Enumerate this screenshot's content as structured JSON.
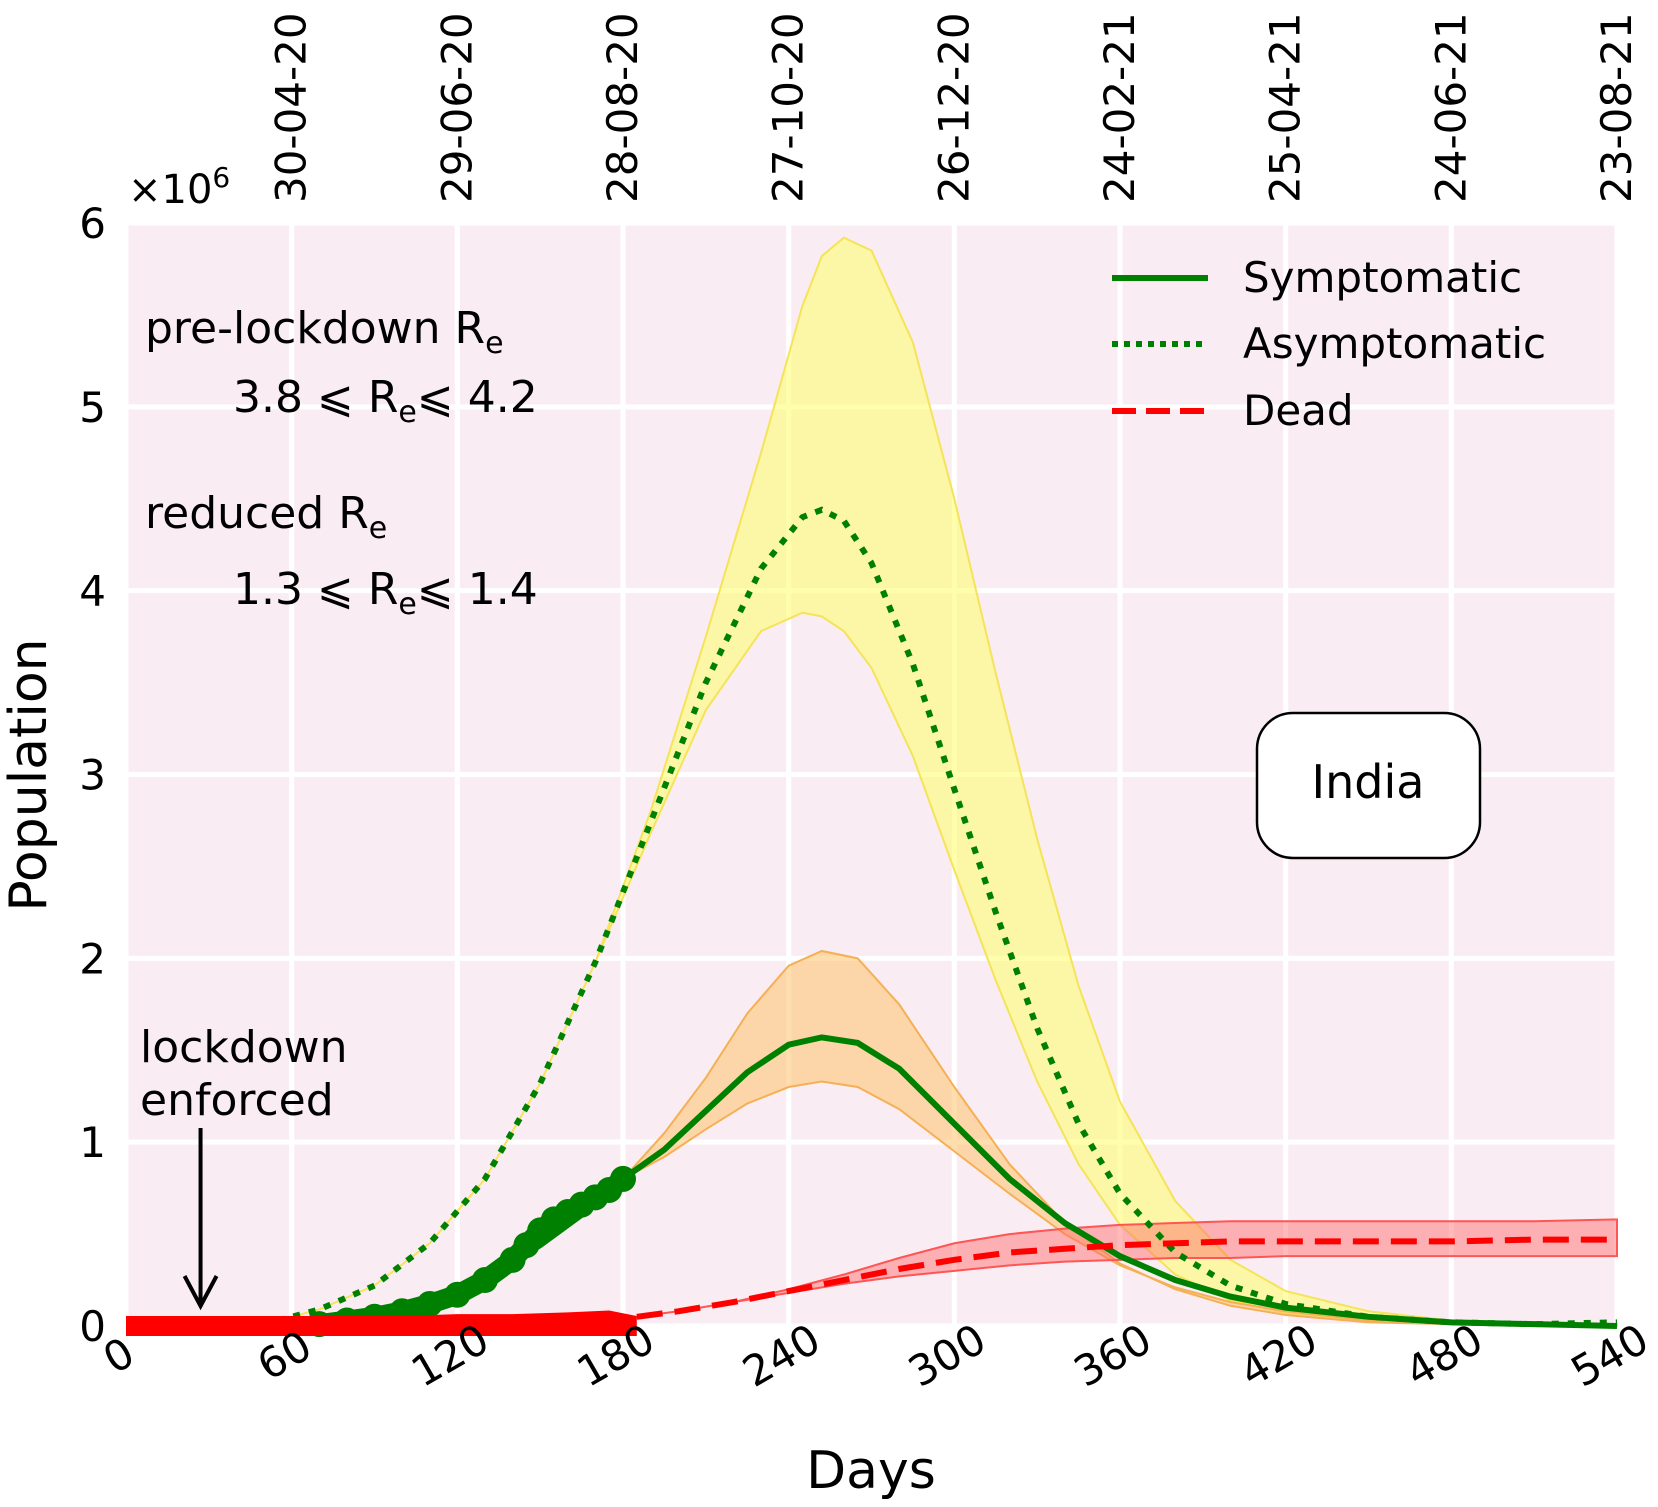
{
  "chart_data": {
    "type": "line",
    "region": "India",
    "xlabel": "Days",
    "ylabel": "Population",
    "y_multiplier": "×10",
    "y_multiplier_exp": "6",
    "xlim": [
      0,
      540
    ],
    "ylim": [
      0,
      6
    ],
    "y_scale": 1000000,
    "xticks": [
      0,
      60,
      120,
      180,
      240,
      300,
      360,
      420,
      480,
      540
    ],
    "yticks": [
      0,
      1,
      2,
      3,
      4,
      5,
      6
    ],
    "top_axis": {
      "ticks": [
        {
          "day": 60,
          "date": "30-04-20"
        },
        {
          "day": 120,
          "date": "29-06-20"
        },
        {
          "day": 180,
          "date": "28-08-20"
        },
        {
          "day": 240,
          "date": "27-10-20"
        },
        {
          "day": 300,
          "date": "26-12-20"
        },
        {
          "day": 360,
          "date": "24-02-21"
        },
        {
          "day": 420,
          "date": "25-04-21"
        },
        {
          "day": 480,
          "date": "24-06-21"
        },
        {
          "day": 540,
          "date": "23-08-21"
        }
      ]
    },
    "legend": {
      "position": "top-right",
      "entries": [
        {
          "label": "Symptomatic",
          "style": "solid",
          "color": "#008000"
        },
        {
          "label": "Asymptomatic",
          "style": "dotted",
          "color": "#008000"
        },
        {
          "label": "Dead",
          "style": "dashed",
          "color": "#ff0000"
        }
      ]
    },
    "annotations": {
      "pre_lockdown_title": "pre-lockdown R",
      "pre_lockdown_range_low": "3.8 ⩽ R",
      "pre_lockdown_range_high": "⩽ 4.2",
      "reduced_title": "reduced R",
      "reduced_range_low": "1.3 ⩽ R",
      "reduced_range_high": "⩽ 1.4",
      "subscript": "e",
      "lockdown_line1": "lockdown",
      "lockdown_line2": "enforced",
      "lockdown_day": 27,
      "country_box": "India"
    },
    "series": [
      {
        "name": "Asymptomatic",
        "style": "dotted",
        "color": "#008000",
        "x": [
          55,
          70,
          90,
          110,
          130,
          150,
          170,
          190,
          210,
          230,
          245,
          252,
          260,
          270,
          285,
          300,
          315,
          330,
          345,
          360,
          380,
          400,
          420,
          450,
          480,
          510,
          540
        ],
        "values": [
          0.03,
          0.09,
          0.22,
          0.45,
          0.8,
          1.32,
          1.98,
          2.74,
          3.5,
          4.12,
          4.4,
          4.44,
          4.38,
          4.15,
          3.6,
          2.92,
          2.25,
          1.62,
          1.1,
          0.72,
          0.4,
          0.22,
          0.12,
          0.05,
          0.02,
          0.01,
          0.02
        ],
        "band_upper": [
          0.03,
          0.09,
          0.22,
          0.45,
          0.8,
          1.32,
          1.98,
          2.8,
          3.75,
          4.75,
          5.55,
          5.82,
          5.92,
          5.85,
          5.35,
          4.5,
          3.55,
          2.65,
          1.85,
          1.22,
          0.68,
          0.36,
          0.19,
          0.08,
          0.03,
          0.01,
          0.01
        ],
        "band_lower": [
          0.03,
          0.09,
          0.22,
          0.45,
          0.8,
          1.32,
          1.98,
          2.68,
          3.35,
          3.78,
          3.88,
          3.86,
          3.78,
          3.58,
          3.1,
          2.48,
          1.88,
          1.33,
          0.88,
          0.55,
          0.28,
          0.14,
          0.07,
          0.03,
          0.01,
          0.0,
          0.0
        ]
      },
      {
        "name": "Symptomatic",
        "style": "solid",
        "color": "#008000",
        "x": [
          55,
          70,
          90,
          110,
          130,
          150,
          170,
          180,
          195,
          210,
          225,
          240,
          252,
          265,
          280,
          300,
          320,
          340,
          360,
          380,
          400,
          420,
          450,
          480,
          510,
          540
        ],
        "values": [
          0.01,
          0.02,
          0.06,
          0.13,
          0.26,
          0.44,
          0.66,
          0.8,
          0.96,
          1.17,
          1.38,
          1.53,
          1.57,
          1.54,
          1.4,
          1.1,
          0.8,
          0.56,
          0.38,
          0.25,
          0.16,
          0.1,
          0.05,
          0.02,
          0.01,
          0.0
        ],
        "band_upper": [
          0.01,
          0.02,
          0.06,
          0.13,
          0.26,
          0.44,
          0.66,
          0.8,
          1.05,
          1.35,
          1.7,
          1.96,
          2.04,
          2.0,
          1.75,
          1.3,
          0.88,
          0.56,
          0.34,
          0.2,
          0.11,
          0.06,
          0.02,
          0.01,
          0.0,
          0.0
        ],
        "band_lower": [
          0.01,
          0.02,
          0.06,
          0.13,
          0.26,
          0.44,
          0.66,
          0.8,
          0.92,
          1.07,
          1.21,
          1.3,
          1.33,
          1.3,
          1.18,
          0.95,
          0.72,
          0.5,
          0.33,
          0.21,
          0.13,
          0.08,
          0.03,
          0.01,
          0.0,
          0.0
        ]
      },
      {
        "name": "Dead",
        "style": "dashed",
        "color": "#ff0000",
        "x": [
          185,
          200,
          220,
          240,
          260,
          280,
          300,
          320,
          340,
          360,
          380,
          400,
          420,
          450,
          480,
          510,
          540
        ],
        "values": [
          0.05,
          0.08,
          0.13,
          0.19,
          0.25,
          0.31,
          0.36,
          0.4,
          0.42,
          0.44,
          0.45,
          0.46,
          0.46,
          0.46,
          0.46,
          0.47,
          0.47
        ],
        "band_upper": [
          0.05,
          0.08,
          0.13,
          0.2,
          0.28,
          0.37,
          0.45,
          0.5,
          0.53,
          0.55,
          0.56,
          0.57,
          0.57,
          0.57,
          0.57,
          0.57,
          0.58
        ],
        "band_lower": [
          0.05,
          0.08,
          0.13,
          0.18,
          0.23,
          0.27,
          0.3,
          0.33,
          0.35,
          0.36,
          0.37,
          0.37,
          0.38,
          0.38,
          0.38,
          0.38,
          0.38
        ]
      }
    ],
    "observed_data": [
      {
        "name": "Observed symptomatic",
        "color": "#008000",
        "x": [
          70,
          80,
          90,
          100,
          110,
          120,
          130,
          140,
          145,
          150,
          155,
          160,
          165,
          170,
          175,
          180
        ],
        "values": [
          0.01,
          0.03,
          0.05,
          0.08,
          0.12,
          0.17,
          0.25,
          0.36,
          0.44,
          0.52,
          0.58,
          0.62,
          0.66,
          0.7,
          0.74,
          0.8
        ]
      },
      {
        "name": "Observed dead",
        "color": "#ff0000",
        "x": [
          0,
          20,
          40,
          60,
          80,
          100,
          120,
          140,
          160,
          175,
          185
        ],
        "values": [
          0.0,
          0.0,
          0.0,
          0.0,
          0.0,
          0.0,
          0.01,
          0.01,
          0.02,
          0.03,
          0.0
        ]
      }
    ]
  }
}
